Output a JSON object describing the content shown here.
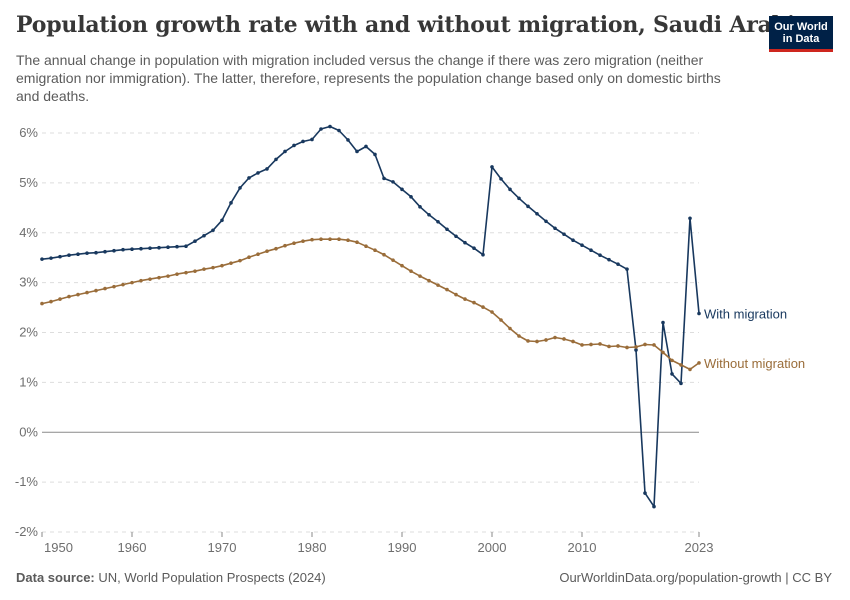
{
  "header": {
    "title": "Population growth rate with and without migration, Saudi Arabia",
    "subtitle": "The annual change in population with migration included versus the change if there was zero migration (neither emigration nor immigration). The latter, therefore, represents the population change based only on domestic births and deaths."
  },
  "logo": {
    "line1": "Our World",
    "line2": "in Data"
  },
  "footer": {
    "source_label": "Data source:",
    "source_text": " UN, World Population Prospects (2024)",
    "link": "OurWorldinData.org/population-growth | CC BY"
  },
  "chart_data": {
    "type": "line",
    "title": "Population growth rate with and without migration, Saudi Arabia",
    "xlim": [
      1950,
      2023
    ],
    "ylim": [
      -2,
      6
    ],
    "x_ticks": [
      1950,
      1960,
      1970,
      1980,
      1990,
      2000,
      2010,
      2023
    ],
    "y_ticks": [
      -2,
      -1,
      0,
      1,
      2,
      3,
      4,
      5,
      6
    ],
    "y_tick_labels": [
      "-2%",
      "-1%",
      "0%",
      "1%",
      "2%",
      "3%",
      "4%",
      "5%",
      "6%"
    ],
    "grid": "horizontal dashed",
    "legend": "inline labels at right end",
    "x": [
      1950,
      1951,
      1952,
      1953,
      1954,
      1955,
      1956,
      1957,
      1958,
      1959,
      1960,
      1961,
      1962,
      1963,
      1964,
      1965,
      1966,
      1967,
      1968,
      1969,
      1970,
      1971,
      1972,
      1973,
      1974,
      1975,
      1976,
      1977,
      1978,
      1979,
      1980,
      1981,
      1982,
      1983,
      1984,
      1985,
      1986,
      1987,
      1988,
      1989,
      1990,
      1991,
      1992,
      1993,
      1994,
      1995,
      1996,
      1997,
      1998,
      1999,
      2000,
      2001,
      2002,
      2003,
      2004,
      2005,
      2006,
      2007,
      2008,
      2009,
      2010,
      2011,
      2012,
      2013,
      2014,
      2015,
      2016,
      2017,
      2018,
      2019,
      2020,
      2021,
      2022,
      2023
    ],
    "series": [
      {
        "name": "With migration",
        "color": "#18385e",
        "values": [
          3.47,
          3.49,
          3.52,
          3.55,
          3.57,
          3.59,
          3.6,
          3.62,
          3.64,
          3.66,
          3.67,
          3.68,
          3.69,
          3.7,
          3.71,
          3.72,
          3.73,
          3.83,
          3.94,
          4.05,
          4.25,
          4.6,
          4.9,
          5.1,
          5.2,
          5.28,
          5.47,
          5.63,
          5.75,
          5.83,
          5.87,
          6.08,
          6.13,
          6.05,
          5.86,
          5.63,
          5.73,
          5.57,
          5.09,
          5.02,
          4.87,
          4.72,
          4.52,
          4.36,
          4.22,
          4.07,
          3.93,
          3.8,
          3.69,
          3.56,
          5.32,
          5.08,
          4.87,
          4.69,
          4.53,
          4.38,
          4.23,
          4.09,
          3.97,
          3.85,
          3.75,
          3.65,
          3.55,
          3.46,
          3.37,
          3.27,
          1.65,
          -1.22,
          -1.49,
          2.2,
          1.17,
          0.98,
          4.29,
          2.38
        ]
      },
      {
        "name": "Without migration",
        "color": "#9a6d3a",
        "values": [
          2.58,
          2.62,
          2.67,
          2.72,
          2.76,
          2.8,
          2.84,
          2.88,
          2.92,
          2.96,
          3.0,
          3.04,
          3.07,
          3.1,
          3.13,
          3.17,
          3.2,
          3.23,
          3.27,
          3.3,
          3.34,
          3.39,
          3.44,
          3.51,
          3.57,
          3.63,
          3.68,
          3.74,
          3.79,
          3.83,
          3.86,
          3.87,
          3.87,
          3.87,
          3.85,
          3.81,
          3.73,
          3.65,
          3.56,
          3.45,
          3.34,
          3.23,
          3.13,
          3.04,
          2.95,
          2.86,
          2.76,
          2.67,
          2.6,
          2.51,
          2.41,
          2.25,
          2.08,
          1.93,
          1.83,
          1.82,
          1.85,
          1.9,
          1.87,
          1.82,
          1.75,
          1.76,
          1.77,
          1.72,
          1.73,
          1.7,
          1.71,
          1.76,
          1.75,
          1.6,
          1.44,
          1.35,
          1.26,
          1.39
        ]
      }
    ]
  }
}
